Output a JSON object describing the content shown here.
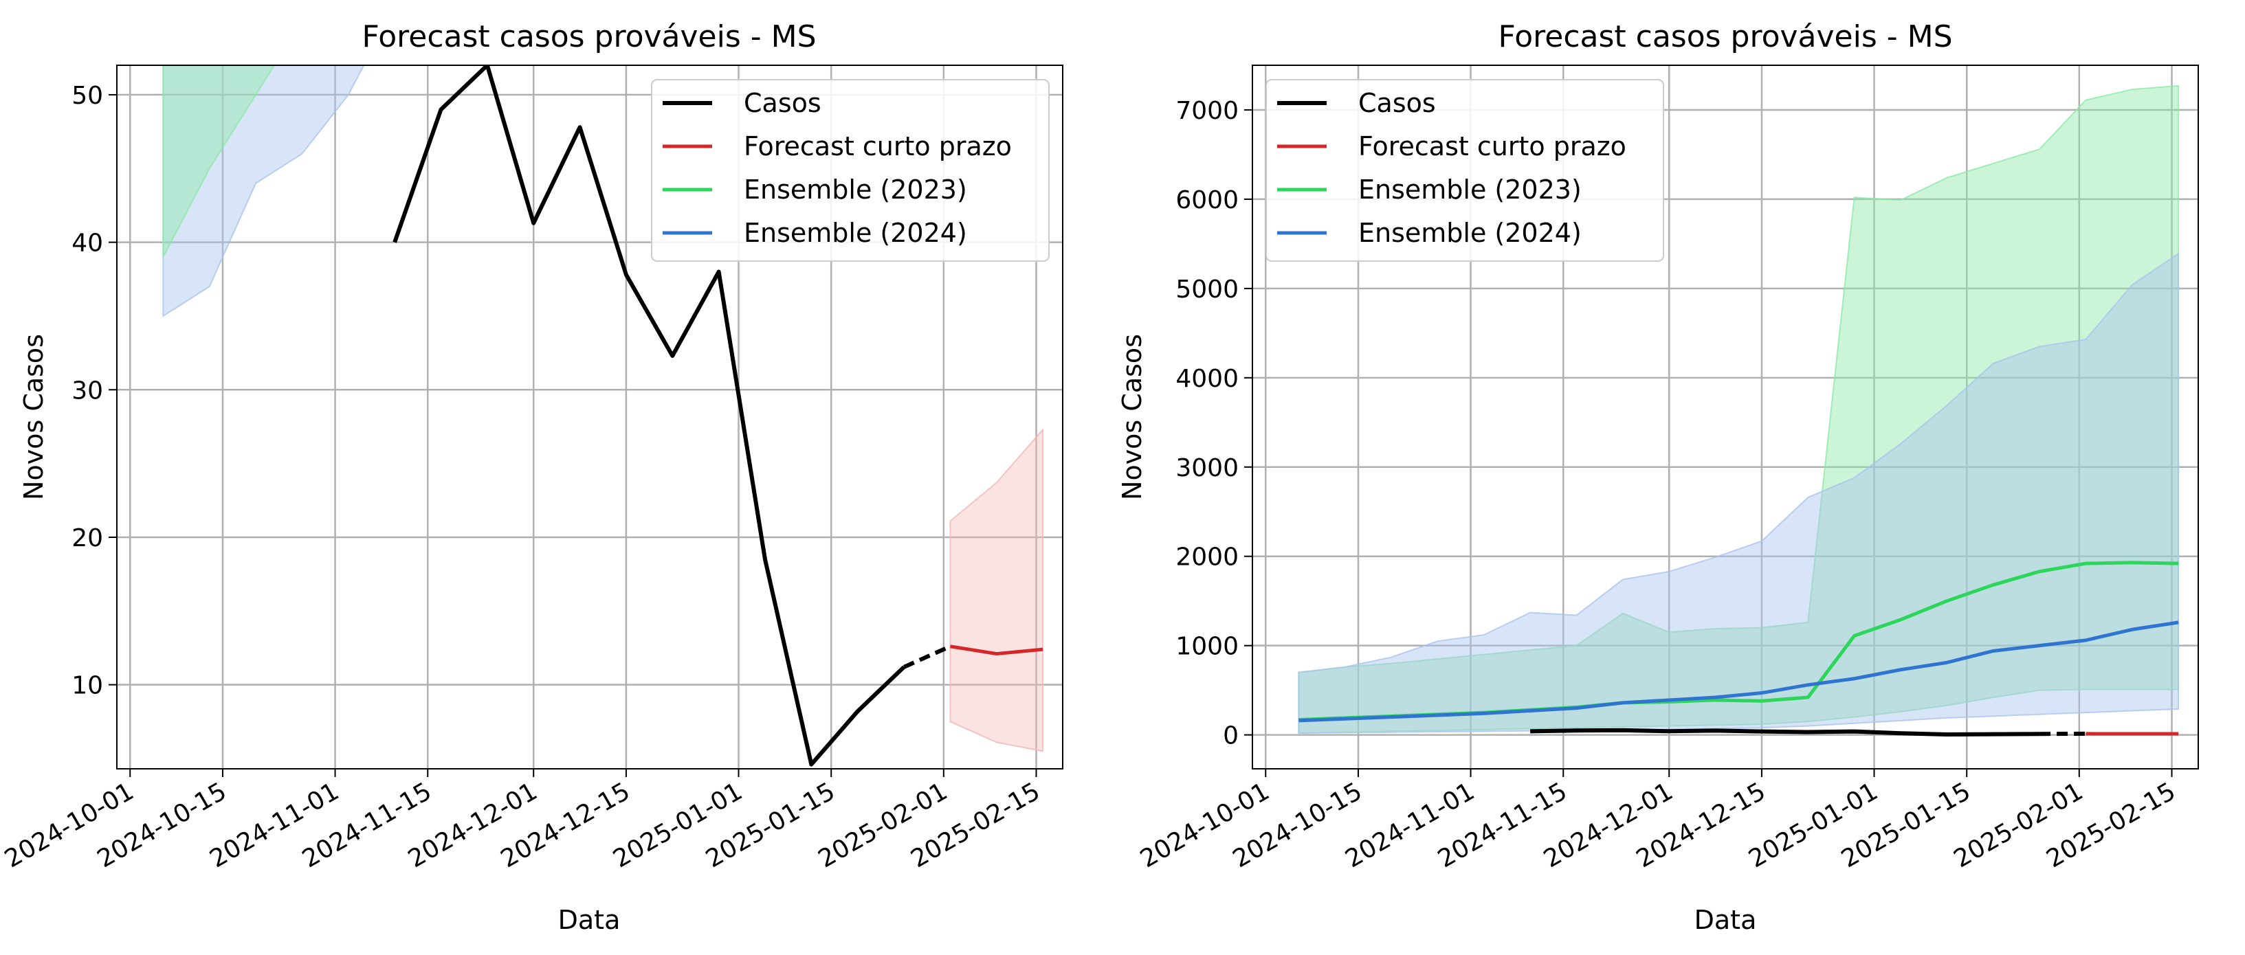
{
  "chart_data": [
    {
      "type": "line",
      "title": "Forecast casos prováveis - MS",
      "xlabel": "Data",
      "ylabel": "Novos Casos",
      "xlim": [
        "2024-09-29",
        "2025-02-19"
      ],
      "ylim": [
        4.3,
        52.0
      ],
      "x_ticks": [
        "2024-10-01",
        "2024-10-15",
        "2024-11-01",
        "2024-11-15",
        "2024-12-01",
        "2024-12-15",
        "2025-01-01",
        "2025-01-15",
        "2025-02-01",
        "2025-02-15"
      ],
      "y_ticks": [
        10,
        20,
        30,
        40,
        50
      ],
      "grid": true,
      "legend_position": "upper-right",
      "colors": {
        "casos": "#000000",
        "forecast": "#d62728",
        "ens2023": "#2bd65a",
        "ens2024": "#2f74d0"
      },
      "series": [
        {
          "name": "Casos",
          "kind": "line",
          "x": [
            "2024-11-10",
            "2024-11-17",
            "2024-11-24",
            "2024-12-01",
            "2024-12-08",
            "2024-12-15",
            "2024-12-22",
            "2024-12-29",
            "2025-01-05",
            "2025-01-12",
            "2025-01-19",
            "2025-01-26"
          ],
          "values": [
            40,
            49,
            52,
            41.3,
            47.8,
            37.8,
            32.3,
            38,
            18.5,
            4.6,
            8.2,
            11.2
          ]
        },
        {
          "name": "",
          "kind": "dash",
          "x": [
            "2025-01-26",
            "2025-02-02"
          ],
          "values": [
            11.2,
            12.6
          ]
        },
        {
          "name": "Forecast curto prazo",
          "kind": "line",
          "x": [
            "2025-02-02",
            "2025-02-09",
            "2025-02-16"
          ],
          "values": [
            12.6,
            12.1,
            12.4
          ]
        },
        {
          "name": "",
          "kind": "band",
          "color_key": "forecast",
          "x": [
            "2025-02-02",
            "2025-02-09",
            "2025-02-16"
          ],
          "lower": [
            7.5,
            6.1,
            5.5
          ],
          "upper": [
            21.1,
            23.7,
            27.3
          ]
        },
        {
          "name": "",
          "kind": "band",
          "color_key": "ens2024",
          "x": [
            "2024-10-06",
            "2024-10-13",
            "2024-10-20",
            "2024-10-27",
            "2024-11-03",
            "2024-11-10",
            "2024-11-17",
            "2024-11-24",
            "2024-12-01",
            "2024-12-08",
            "2024-12-15",
            "2024-12-22",
            "2024-12-29",
            "2025-01-05",
            "2025-01-12",
            "2025-01-19",
            "2025-01-26",
            "2025-02-02",
            "2025-02-09",
            "2025-02-16"
          ],
          "lower": [
            35,
            37,
            44,
            46,
            50,
            56,
            60,
            65,
            70,
            75,
            80,
            85,
            90,
            95,
            100,
            105,
            110,
            115,
            120,
            125
          ],
          "upper": [
            700,
            760,
            870,
            1050,
            1120,
            1370,
            1340,
            1740,
            1830,
            1990,
            2170,
            2660,
            2880,
            3260,
            3690,
            4160,
            4350,
            4430,
            5040,
            5390
          ]
        },
        {
          "name": "",
          "kind": "band",
          "color_key": "ens2023",
          "x": [
            "2024-10-06",
            "2024-10-13",
            "2024-10-20",
            "2024-10-27",
            "2024-11-03",
            "2024-11-10",
            "2024-11-17",
            "2024-11-24",
            "2024-12-01",
            "2024-12-08",
            "2024-12-15",
            "2024-12-22",
            "2024-12-29",
            "2025-01-05",
            "2025-01-12",
            "2025-01-19",
            "2025-01-26",
            "2025-02-02",
            "2025-02-09",
            "2025-02-16"
          ],
          "lower": [
            39,
            45,
            50,
            55,
            60,
            66,
            72,
            78,
            84,
            90,
            96,
            102,
            108,
            114,
            120,
            126,
            132,
            138,
            144,
            150
          ],
          "upper": [
            700,
            760,
            800,
            850,
            900,
            950,
            1000,
            1360,
            1150,
            1190,
            1200,
            1260,
            6020,
            5990,
            6240,
            6400,
            6560,
            7110,
            7230,
            7270
          ]
        }
      ]
    },
    {
      "type": "line",
      "title": "Forecast casos prováveis - MS",
      "xlabel": "Data",
      "ylabel": "Novos Casos",
      "xlim": [
        "2024-09-29",
        "2025-02-19"
      ],
      "ylim": [
        -380,
        7500
      ],
      "x_ticks": [
        "2024-10-01",
        "2024-10-15",
        "2024-11-01",
        "2024-11-15",
        "2024-12-01",
        "2024-12-15",
        "2025-01-01",
        "2025-01-15",
        "2025-02-01",
        "2025-02-15"
      ],
      "y_ticks": [
        0,
        1000,
        2000,
        3000,
        4000,
        5000,
        6000,
        7000
      ],
      "grid": true,
      "legend_position": "upper-left",
      "colors": {
        "casos": "#000000",
        "forecast": "#d62728",
        "ens2023": "#2bd65a",
        "ens2024": "#2f74d0"
      },
      "series": [
        {
          "name": "",
          "kind": "band",
          "color_key": "ens2023",
          "x": [
            "2024-10-06",
            "2024-10-13",
            "2024-10-20",
            "2024-10-27",
            "2024-11-03",
            "2024-11-10",
            "2024-11-17",
            "2024-11-24",
            "2024-12-01",
            "2024-12-08",
            "2024-12-15",
            "2024-12-22",
            "2024-12-29",
            "2025-01-05",
            "2025-01-12",
            "2025-01-19",
            "2025-01-26",
            "2025-02-02",
            "2025-02-09",
            "2025-02-16"
          ],
          "lower": [
            20,
            30,
            40,
            50,
            60,
            70,
            80,
            90,
            100,
            110,
            120,
            150,
            200,
            260,
            330,
            420,
            500,
            510,
            510,
            510
          ],
          "upper": [
            700,
            760,
            800,
            850,
            900,
            950,
            1000,
            1360,
            1150,
            1190,
            1200,
            1260,
            6020,
            5990,
            6240,
            6400,
            6560,
            7110,
            7230,
            7270
          ]
        },
        {
          "name": "",
          "kind": "band",
          "color_key": "ens2024",
          "x": [
            "2024-10-06",
            "2024-10-13",
            "2024-10-20",
            "2024-10-27",
            "2024-11-03",
            "2024-11-10",
            "2024-11-17",
            "2024-11-24",
            "2024-12-01",
            "2024-12-08",
            "2024-12-15",
            "2024-12-22",
            "2024-12-29",
            "2025-01-05",
            "2025-01-12",
            "2025-01-19",
            "2025-01-26",
            "2025-02-02",
            "2025-02-09",
            "2025-02-16"
          ],
          "lower": [
            20,
            25,
            30,
            35,
            40,
            45,
            50,
            55,
            60,
            70,
            80,
            100,
            130,
            160,
            190,
            210,
            230,
            250,
            270,
            290
          ],
          "upper": [
            700,
            760,
            870,
            1050,
            1120,
            1370,
            1340,
            1740,
            1830,
            1990,
            2170,
            2660,
            2880,
            3260,
            3690,
            4160,
            4350,
            4430,
            5040,
            5390
          ]
        },
        {
          "name": "Ensemble (2023)",
          "kind": "line",
          "color_key": "ens2023",
          "x": [
            "2024-10-06",
            "2024-10-13",
            "2024-10-20",
            "2024-10-27",
            "2024-11-03",
            "2024-11-10",
            "2024-11-17",
            "2024-11-24",
            "2024-12-01",
            "2024-12-08",
            "2024-12-15",
            "2024-12-22",
            "2024-12-29",
            "2025-01-05",
            "2025-01-12",
            "2025-01-19",
            "2025-01-26",
            "2025-02-02",
            "2025-02-09",
            "2025-02-16"
          ],
          "values": [
            170,
            190,
            210,
            230,
            250,
            280,
            310,
            360,
            370,
            390,
            380,
            420,
            1110,
            1290,
            1500,
            1680,
            1830,
            1920,
            1930,
            1920
          ]
        },
        {
          "name": "Ensemble (2024)",
          "kind": "line",
          "color_key": "ens2024",
          "x": [
            "2024-10-06",
            "2024-10-13",
            "2024-10-20",
            "2024-10-27",
            "2024-11-03",
            "2024-11-10",
            "2024-11-17",
            "2024-11-24",
            "2024-12-01",
            "2024-12-08",
            "2024-12-15",
            "2024-12-22",
            "2024-12-29",
            "2025-01-05",
            "2025-01-12",
            "2025-01-19",
            "2025-01-26",
            "2025-02-02",
            "2025-02-09",
            "2025-02-16"
          ],
          "values": [
            160,
            180,
            200,
            220,
            240,
            270,
            300,
            360,
            390,
            420,
            470,
            560,
            630,
            730,
            810,
            940,
            1000,
            1060,
            1180,
            1260
          ]
        },
        {
          "name": "Casos",
          "kind": "line",
          "color_key": "casos",
          "x": [
            "2024-11-10",
            "2024-11-17",
            "2024-11-24",
            "2024-12-01",
            "2024-12-08",
            "2024-12-15",
            "2024-12-22",
            "2024-12-29",
            "2025-01-05",
            "2025-01-12",
            "2025-01-19",
            "2025-01-26"
          ],
          "values": [
            40,
            49,
            52,
            41,
            48,
            38,
            32,
            38,
            18,
            5,
            8,
            11
          ]
        },
        {
          "name": "",
          "kind": "dash",
          "color_key": "casos",
          "x": [
            "2025-01-26",
            "2025-02-02"
          ],
          "values": [
            11,
            13
          ]
        },
        {
          "name": "Forecast curto prazo",
          "kind": "line",
          "color_key": "forecast",
          "x": [
            "2025-02-02",
            "2025-02-09",
            "2025-02-16"
          ],
          "values": [
            13,
            12,
            12
          ]
        }
      ],
      "legend": [
        "Casos",
        "Forecast curto prazo",
        "Ensemble (2023)",
        "Ensemble (2024)"
      ]
    }
  ]
}
